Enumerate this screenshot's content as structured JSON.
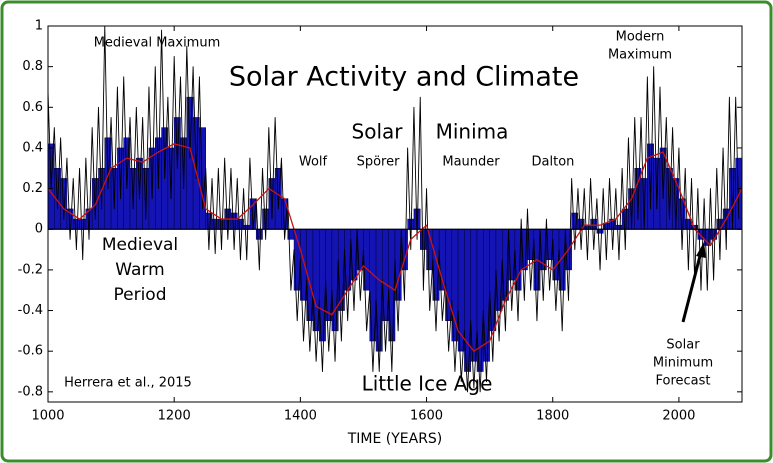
{
  "chart_data": {
    "type": "bar",
    "title": "Solar Activity and Climate",
    "x_label": "TIME (YEARS)",
    "annotations": [
      [
        "Medieval Maximum"
      ],
      [
        "Solar"
      ],
      [
        "Minima"
      ],
      [
        "Wolf"
      ],
      [
        "Spörer"
      ],
      [
        "Maunder"
      ],
      [
        "Dalton"
      ],
      [
        "Modern",
        "Maximum"
      ],
      [
        "Medieval",
        "Warm",
        "Period"
      ],
      [
        "Herrera et al., 2015"
      ],
      [
        "Little Ice Age"
      ],
      [
        "Solar",
        "Minimum",
        "Forecast"
      ]
    ],
    "xlim": [
      1000,
      2100
    ],
    "ylim": [
      -0.85,
      1
    ],
    "xticks": [
      1000,
      1200,
      1400,
      1600,
      1800,
      2000
    ],
    "yticks": [
      -0.8,
      -0.6,
      -0.4,
      -0.2,
      0,
      0.2,
      0.4,
      0.6,
      0.8,
      1
    ],
    "series": [
      {
        "type": "bar",
        "color": "#1414b4",
        "x": [
          1000,
          1010,
          1020,
          1030,
          1040,
          1050,
          1060,
          1070,
          1080,
          1090,
          1100,
          1110,
          1120,
          1130,
          1140,
          1150,
          1160,
          1170,
          1180,
          1190,
          1200,
          1210,
          1220,
          1230,
          1240,
          1250,
          1260,
          1270,
          1280,
          1290,
          1300,
          1310,
          1320,
          1330,
          1340,
          1350,
          1360,
          1370,
          1380,
          1390,
          1400,
          1410,
          1420,
          1430,
          1440,
          1450,
          1460,
          1470,
          1480,
          1490,
          1500,
          1510,
          1520,
          1530,
          1540,
          1550,
          1560,
          1570,
          1580,
          1590,
          1600,
          1610,
          1620,
          1630,
          1640,
          1650,
          1660,
          1670,
          1680,
          1690,
          1700,
          1710,
          1720,
          1730,
          1740,
          1750,
          1760,
          1770,
          1780,
          1790,
          1800,
          1810,
          1820,
          1830,
          1840,
          1850,
          1860,
          1870,
          1880,
          1890,
          1900,
          1910,
          1920,
          1930,
          1940,
          1950,
          1960,
          1970,
          1980,
          1990,
          2000,
          2010,
          2020,
          2030,
          2040,
          2050,
          2060,
          2070,
          2080,
          2090
        ],
        "values": [
          0.42,
          0.3,
          0.25,
          0.1,
          0.05,
          0.05,
          0.1,
          0.25,
          0.3,
          0.45,
          0.3,
          0.4,
          0.45,
          0.3,
          0.35,
          0.3,
          0.4,
          0.45,
          0.5,
          0.4,
          0.55,
          0.45,
          0.65,
          0.55,
          0.5,
          0.08,
          0.05,
          0.05,
          0.1,
          0.08,
          0.05,
          0.02,
          0.15,
          -0.05,
          0.1,
          0.25,
          0.3,
          0.15,
          -0.05,
          -0.3,
          -0.35,
          -0.45,
          -0.5,
          -0.55,
          -0.45,
          -0.5,
          -0.4,
          -0.3,
          -0.25,
          -0.2,
          -0.3,
          -0.55,
          -0.6,
          -0.45,
          -0.55,
          -0.35,
          -0.2,
          0.05,
          0.1,
          -0.1,
          -0.2,
          -0.35,
          -0.3,
          -0.45,
          -0.55,
          -0.6,
          -0.7,
          -0.65,
          -0.7,
          -0.65,
          -0.5,
          -0.4,
          -0.35,
          -0.25,
          -0.3,
          -0.2,
          -0.15,
          -0.3,
          -0.2,
          -0.15,
          -0.25,
          -0.3,
          -0.2,
          0.08,
          0.05,
          0.02,
          0.05,
          -0.02,
          0.03,
          0.05,
          0.02,
          0.1,
          0.2,
          0.3,
          0.25,
          0.42,
          0.35,
          0.4,
          0.3,
          0.25,
          0.15,
          0.05,
          0.02,
          -0.05,
          -0.08,
          -0.05,
          0.05,
          0.1,
          0.3,
          0.35
        ]
      },
      {
        "type": "line",
        "color": "#000000",
        "x": [
          1000,
          1005,
          1010,
          1015,
          1020,
          1025,
          1030,
          1035,
          1040,
          1045,
          1050,
          1055,
          1060,
          1065,
          1070,
          1075,
          1080,
          1085,
          1090,
          1095,
          1100,
          1105,
          1110,
          1115,
          1120,
          1125,
          1130,
          1135,
          1140,
          1145,
          1150,
          1155,
          1160,
          1165,
          1170,
          1175,
          1180,
          1185,
          1190,
          1195,
          1200,
          1205,
          1210,
          1215,
          1220,
          1225,
          1230,
          1235,
          1240,
          1245,
          1250,
          1255,
          1260,
          1265,
          1270,
          1275,
          1280,
          1285,
          1290,
          1295,
          1300,
          1305,
          1310,
          1315,
          1320,
          1325,
          1330,
          1335,
          1340,
          1345,
          1350,
          1355,
          1360,
          1365,
          1370,
          1375,
          1380,
          1385,
          1390,
          1395,
          1400,
          1405,
          1410,
          1415,
          1420,
          1425,
          1430,
          1435,
          1440,
          1445,
          1450,
          1455,
          1460,
          1465,
          1470,
          1475,
          1480,
          1485,
          1490,
          1495,
          1500,
          1505,
          1510,
          1515,
          1520,
          1525,
          1530,
          1535,
          1540,
          1545,
          1550,
          1555,
          1560,
          1565,
          1570,
          1575,
          1580,
          1585,
          1590,
          1595,
          1600,
          1605,
          1610,
          1615,
          1620,
          1625,
          1630,
          1635,
          1640,
          1645,
          1650,
          1655,
          1660,
          1665,
          1670,
          1675,
          1680,
          1685,
          1690,
          1695,
          1700,
          1705,
          1710,
          1715,
          1720,
          1725,
          1730,
          1735,
          1740,
          1745,
          1750,
          1755,
          1760,
          1765,
          1770,
          1775,
          1780,
          1785,
          1790,
          1795,
          1800,
          1805,
          1810,
          1815,
          1820,
          1825,
          1830,
          1835,
          1840,
          1845,
          1850,
          1855,
          1860,
          1865,
          1870,
          1875,
          1880,
          1885,
          1890,
          1895,
          1900,
          1905,
          1910,
          1915,
          1920,
          1925,
          1930,
          1935,
          1940,
          1945,
          1950,
          1955,
          1960,
          1965,
          1970,
          1975,
          1980,
          1985,
          1990,
          1995,
          2000,
          2005,
          2010,
          2015,
          2020,
          2025,
          2030,
          2035,
          2040,
          2045,
          2050,
          2055,
          2060,
          2065,
          2070,
          2075,
          2080,
          2085,
          2090,
          2095
        ],
        "values": [
          0.68,
          0.2,
          0.5,
          0.1,
          0.45,
          0.05,
          0.35,
          -0.05,
          0.25,
          -0.1,
          0.3,
          -0.15,
          0.35,
          -0.05,
          0.5,
          0.05,
          0.6,
          0.1,
          1.0,
          0.2,
          0.55,
          0.1,
          0.7,
          0.15,
          0.75,
          0.2,
          0.55,
          0.1,
          0.6,
          0.15,
          0.55,
          0.05,
          0.7,
          0.15,
          0.8,
          0.2,
          0.98,
          0.25,
          0.65,
          0.15,
          0.85,
          0.3,
          0.75,
          0.2,
          0.9,
          0.35,
          0.8,
          0.25,
          0.75,
          0.1,
          0.3,
          -0.1,
          0.25,
          -0.12,
          0.3,
          -0.1,
          0.35,
          -0.05,
          0.3,
          -0.1,
          0.25,
          -0.15,
          0.2,
          -0.15,
          0.35,
          0,
          0.15,
          -0.2,
          0.3,
          -0.05,
          0.5,
          0.05,
          0.55,
          0.1,
          0.35,
          -0.05,
          0.15,
          -0.3,
          -0.1,
          -0.45,
          -0.15,
          -0.55,
          -0.25,
          -0.6,
          -0.3,
          -0.65,
          -0.35,
          -0.7,
          -0.25,
          -0.6,
          -0.3,
          -0.65,
          -0.15,
          -0.55,
          -0.1,
          -0.45,
          -0.05,
          -0.4,
          0,
          -0.35,
          -0.1,
          -0.5,
          -0.3,
          -0.7,
          -0.35,
          -0.7,
          -0.25,
          -0.6,
          -0.3,
          -0.7,
          -0.15,
          -0.5,
          0,
          -0.35,
          0.4,
          -0.1,
          0.6,
          -0.05,
          0.65,
          -0.3,
          0.2,
          -0.4,
          -0.15,
          -0.5,
          -0.1,
          -0.45,
          -0.25,
          -0.6,
          -0.35,
          -0.7,
          -0.4,
          -0.75,
          -0.5,
          -0.8,
          -0.45,
          -0.78,
          -0.5,
          -0.8,
          -0.4,
          -0.75,
          -0.3,
          -0.65,
          -0.2,
          -0.55,
          -0.15,
          -0.5,
          0,
          -0.4,
          -0.1,
          -0.45,
          0.05,
          -0.35,
          0.1,
          -0.3,
          -0.05,
          -0.45,
          0,
          -0.35,
          0.05,
          -0.3,
          -0.05,
          -0.4,
          -0.1,
          -0.5,
          0,
          -0.35,
          0.25,
          -0.1,
          0.2,
          -0.1,
          0.2,
          -0.15,
          0.25,
          -0.1,
          0.15,
          -0.2,
          0.2,
          -0.15,
          0.25,
          -0.1,
          0.2,
          -0.15,
          0.3,
          -0.1,
          0.45,
          0,
          0.55,
          0.05,
          0.55,
          0,
          0.75,
          0.1,
          0.8,
          0.1,
          0.7,
          0.15,
          0.55,
          0.05,
          0.5,
          0,
          0.4,
          -0.1,
          0.3,
          -0.2,
          0.25,
          -0.25,
          0.2,
          -0.3,
          0.15,
          -0.3,
          0.2,
          -0.25,
          0.3,
          -0.15,
          0.4,
          -0.1,
          0.65,
          0,
          0.65,
          0.05
        ]
      },
      {
        "type": "line",
        "color": "#c81414",
        "x": [
          1000,
          1025,
          1050,
          1075,
          1100,
          1125,
          1150,
          1175,
          1200,
          1225,
          1250,
          1275,
          1300,
          1325,
          1350,
          1375,
          1400,
          1425,
          1450,
          1475,
          1500,
          1525,
          1550,
          1575,
          1600,
          1625,
          1650,
          1675,
          1700,
          1725,
          1750,
          1775,
          1800,
          1825,
          1850,
          1875,
          1900,
          1925,
          1950,
          1975,
          2000,
          2025,
          2050,
          2075,
          2100
        ],
        "values": [
          0.2,
          0.1,
          0.05,
          0.12,
          0.3,
          0.35,
          0.33,
          0.38,
          0.42,
          0.4,
          0.1,
          0.05,
          0.05,
          0.12,
          0.2,
          0.15,
          -0.1,
          -0.38,
          -0.42,
          -0.3,
          -0.18,
          -0.25,
          -0.3,
          -0.05,
          0.02,
          -0.25,
          -0.5,
          -0.6,
          -0.55,
          -0.35,
          -0.2,
          -0.15,
          -0.2,
          -0.1,
          0.02,
          0.02,
          0.05,
          0.15,
          0.35,
          0.38,
          0.2,
          0,
          -0.08,
          0.05,
          0.2
        ]
      }
    ]
  }
}
